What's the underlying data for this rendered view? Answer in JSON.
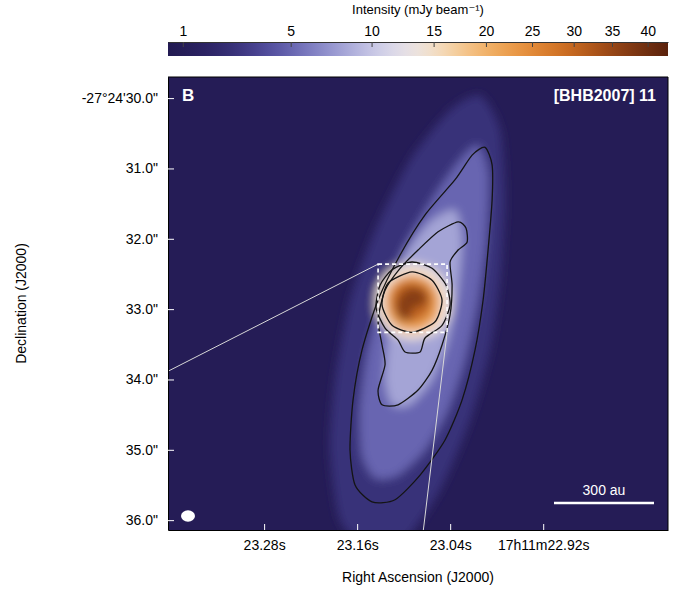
{
  "chart_data": {
    "type": "image",
    "panel": "B",
    "title": "[BHB2007] 11",
    "x_label": "Right Ascension (J2000)",
    "y_label": "Declination (J2000)",
    "xlim": [
      23.404,
      22.759
    ],
    "xticks": [
      {
        "value": 23.28,
        "label": "23.28s"
      },
      {
        "value": 23.16,
        "label": "23.16s"
      },
      {
        "value": 23.04,
        "label": "23.04s"
      },
      {
        "value": 22.92,
        "label": "17h11m22.92s"
      }
    ],
    "ylim": [
      29.7,
      36.14
    ],
    "yticks": [
      {
        "value": 30,
        "label": "-27°24'30.0\""
      },
      {
        "value": 31,
        "label": "31.0\""
      },
      {
        "value": 32,
        "label": "32.0\""
      },
      {
        "value": 33,
        "label": "33.0\""
      },
      {
        "value": 34,
        "label": "34.0\""
      },
      {
        "value": 35,
        "label": "35.0\""
      },
      {
        "value": 36,
        "label": "36.0\""
      }
    ],
    "colorbar": {
      "label": "Intensity (mJy beam⁻¹)",
      "range": [
        0.69,
        43
      ],
      "ticks": [
        1,
        5,
        10,
        15,
        20,
        25,
        30,
        35,
        40
      ]
    },
    "background": 0.9,
    "emission": [
      {
        "level": 2.5,
        "x": [
          23.0014,
          22.9756,
          22.9692,
          22.9756,
          22.9885,
          23.0143,
          23.053,
          23.0982,
          23.1434,
          23.1821,
          23.195,
          23.1885,
          23.1692,
          23.1369,
          23.0917,
          23.0401
        ],
        "y": [
          29.96,
          30.45,
          31.45,
          32.59,
          33.58,
          34.58,
          35.57,
          36.28,
          36.42,
          36.0,
          35.0,
          34.01,
          32.87,
          31.88,
          30.88,
          30.17
        ]
      },
      {
        "level": 5,
        "x": [
          23.004,
          22.9911,
          22.9937,
          23.004,
          23.0208,
          23.0427,
          23.0724,
          23.1072,
          23.1369,
          23.1537,
          23.1563,
          23.1459,
          23.124,
          23.0943,
          23.0595,
          23.0272
        ],
        "y": [
          30.67,
          31.09,
          32.02,
          32.87,
          33.72,
          34.43,
          35.0,
          35.36,
          35.4,
          35.07,
          34.43,
          33.58,
          32.73,
          32.02,
          31.38,
          30.88
        ]
      },
      {
        "level": 8,
        "x": [
          23.0337,
          23.0246,
          23.0298,
          23.0427,
          23.0634,
          23.0917,
          23.115,
          23.124,
          23.1201,
          23.115,
          23.0982,
          23.0659
        ],
        "y": [
          31.59,
          32.02,
          32.73,
          33.44,
          34.01,
          34.36,
          34.36,
          34.01,
          33.44,
          32.8,
          32.23,
          31.76
        ]
      },
      {
        "level": 14,
        "x": [
          23.0892,
          23.0595,
          23.0401,
          23.0401,
          23.0569,
          23.0892,
          23.1175,
          23.1356,
          23.1343,
          23.1175
        ],
        "y": [
          32.34,
          32.44,
          32.73,
          33.08,
          33.34,
          33.44,
          33.34,
          33.06,
          32.7,
          32.44
        ]
      },
      {
        "level": 22,
        "x": [
          23.0892,
          23.0659,
          23.053,
          23.0569,
          23.0763,
          23.1021,
          23.1201,
          23.124,
          23.1137
        ],
        "y": [
          32.5,
          32.59,
          32.83,
          33.13,
          33.3,
          33.3,
          33.13,
          32.83,
          32.61
        ]
      },
      {
        "level": 30,
        "x": [
          23.0917,
          23.0724,
          23.0634,
          23.0685,
          23.0853,
          23.1046,
          23.115,
          23.1137,
          23.1046
        ],
        "y": [
          32.6,
          32.66,
          32.84,
          33.07,
          33.18,
          33.15,
          32.97,
          32.76,
          32.64
        ]
      },
      {
        "level": 37,
        "x": [
          23.0853,
          23.0724,
          23.0698,
          23.0788,
          23.0892,
          23.0917,
          23.1046,
          23.1098,
          23.1072,
          23.0982
        ],
        "y": [
          32.69,
          32.76,
          32.9,
          32.96,
          33.01,
          33.15,
          33.15,
          33.01,
          32.84,
          32.73
        ]
      }
    ],
    "contours": [
      {
        "level": 3,
        "x": [
          22.995,
          22.9859,
          22.9859,
          22.9911,
          22.9975,
          23.0079,
          23.0246,
          23.0466,
          23.0788,
          23.1111,
          23.1408,
          23.1627,
          23.1692,
          23.1653,
          23.1537,
          23.133,
          23.1046,
          23.0724,
          23.0337,
          23.0117
        ],
        "y": [
          30.7,
          30.95,
          31.45,
          32.16,
          32.87,
          33.58,
          34.29,
          34.86,
          35.36,
          35.71,
          35.74,
          35.5,
          35.0,
          34.29,
          33.58,
          32.87,
          32.23,
          31.66,
          31.16,
          30.81
        ]
      },
      {
        "level": 6,
        "x": [
          23.0298,
          23.0195,
          23.0182,
          23.0298,
          23.0401,
          23.0375,
          23.0401,
          23.0505,
          23.0634,
          23.0814,
          23.1072,
          23.1279,
          23.133,
          23.124,
          23.1279,
          23.133,
          23.124,
          23.1046,
          23.0814,
          23.0556
        ],
        "y": [
          31.76,
          31.85,
          32.05,
          32.16,
          32.33,
          32.66,
          33.08,
          33.51,
          33.87,
          34.15,
          34.36,
          34.36,
          34.15,
          33.79,
          33.51,
          33.15,
          32.73,
          32.42,
          32.16,
          31.9
        ]
      },
      {
        "level": 11,
        "x": [
          23.0892,
          23.0634,
          23.0453,
          23.0401,
          23.0505,
          23.0724,
          23.0788,
          23.0982,
          23.1072,
          23.124,
          23.1356,
          23.1305,
          23.115
        ],
        "y": [
          32.33,
          32.42,
          32.66,
          32.94,
          33.23,
          33.41,
          33.61,
          33.61,
          33.44,
          33.27,
          32.98,
          32.66,
          32.44
        ]
      },
      {
        "level": 18,
        "x": [
          23.0892,
          23.0634,
          23.0505,
          23.0595,
          23.0892,
          23.115,
          23.1279,
          23.1201
        ],
        "y": [
          32.47,
          32.59,
          32.87,
          33.18,
          33.33,
          33.23,
          32.94,
          32.63
        ]
      }
    ],
    "inset_box": {
      "x": [
        23.133,
        23.044
      ],
      "y": [
        32.36,
        33.33
      ]
    },
    "beam": {
      "width": 0.018,
      "height": 0.16
    },
    "scale_bar": {
      "label": "300 au",
      "length": 0.129
    }
  }
}
